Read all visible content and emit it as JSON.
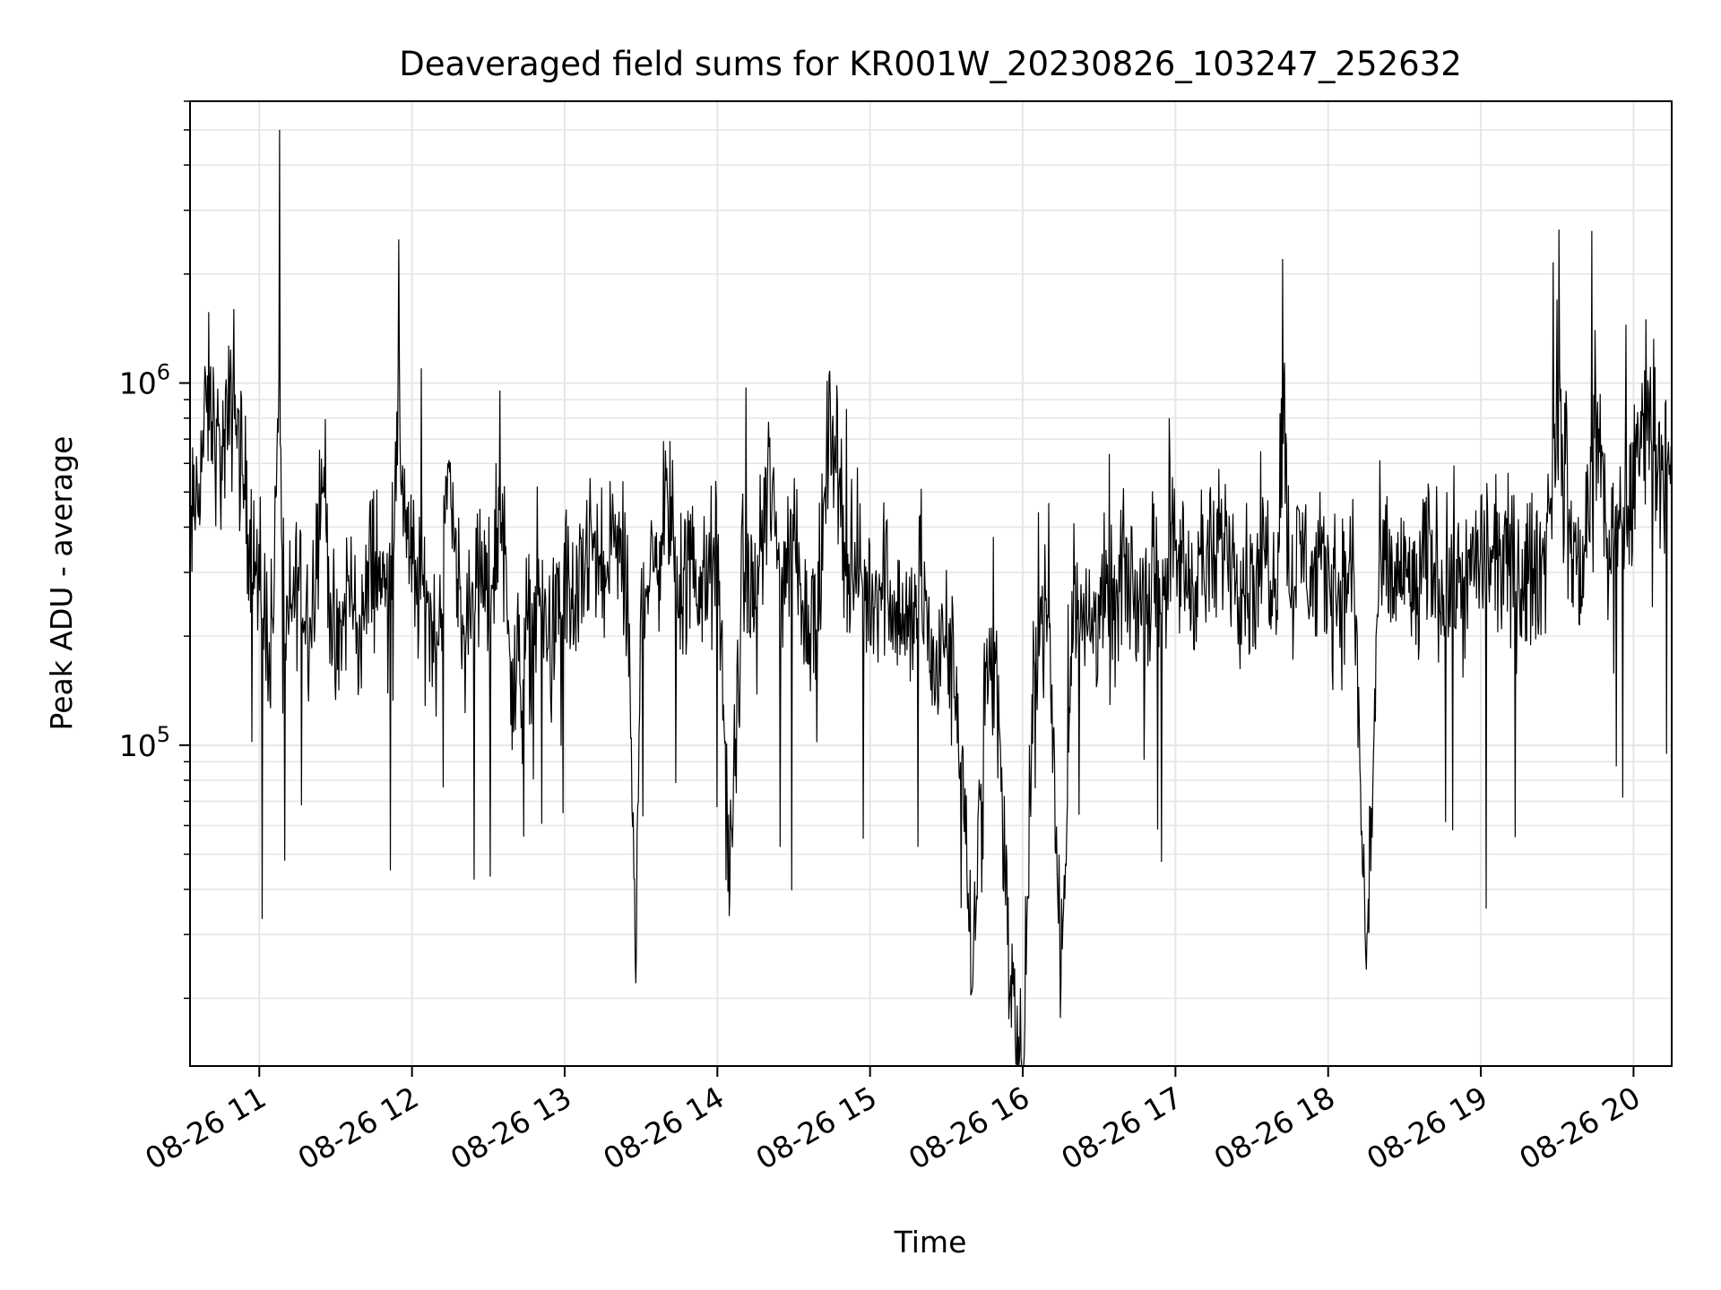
{
  "chart_data": {
    "type": "line",
    "title": "Deaveraged field sums for KR001W_20230826_103247_252632",
    "xlabel": "Time",
    "ylabel": "Peak ADU - average",
    "x_axis": {
      "kind": "time",
      "range": [
        "2023-08-26 10:32:47",
        "2023-08-26 20:15:00"
      ],
      "ticks": [
        "2023-08-26 11:00",
        "2023-08-26 12:00",
        "2023-08-26 13:00",
        "2023-08-26 14:00",
        "2023-08-26 15:00",
        "2023-08-26 16:00",
        "2023-08-26 17:00",
        "2023-08-26 18:00",
        "2023-08-26 19:00",
        "2023-08-26 20:00"
      ],
      "tick_labels": [
        "08-26 11",
        "08-26 12",
        "08-26 13",
        "08-26 14",
        "08-26 15",
        "08-26 16",
        "08-26 17",
        "08-26 18",
        "08-26 19",
        "08-26 20"
      ]
    },
    "y_axis": {
      "scale": "log",
      "ylim": [
        13000,
        6000000
      ],
      "major_ticks": [
        100000,
        1000000
      ],
      "tick_labels": [
        {
          "base": "10",
          "exp": "5"
        },
        {
          "base": "10",
          "exp": "6"
        }
      ]
    },
    "grid": true,
    "line_color": "#000000",
    "grid_color": "#e6e6e6",
    "series": [
      {
        "x": [
          "10:32:47",
          "10:40",
          "10:45",
          "10:50",
          "10:55",
          "11:00",
          "11:05",
          "11:08",
          "11:10",
          "11:15",
          "11:20",
          "11:25",
          "11:30",
          "11:35",
          "11:40",
          "11:45",
          "11:50",
          "11:55",
          "12:00",
          "12:05",
          "12:10",
          "12:15",
          "12:20",
          "12:25",
          "12:30",
          "12:35",
          "12:40",
          "12:45",
          "12:50",
          "12:55",
          "13:00",
          "13:05",
          "13:10",
          "13:15",
          "13:20",
          "13:25",
          "13:28",
          "13:30",
          "13:35",
          "13:40",
          "13:45",
          "13:50",
          "13:55",
          "14:00",
          "14:05",
          "14:10",
          "14:15",
          "14:20",
          "14:25",
          "14:30",
          "14:35",
          "14:40",
          "14:45",
          "14:50",
          "14:55",
          "15:00",
          "15:05",
          "15:10",
          "15:15",
          "15:20",
          "15:25",
          "15:30",
          "15:35",
          "15:40",
          "15:45",
          "15:50",
          "15:55",
          "16:00",
          "16:05",
          "16:10",
          "16:15",
          "16:20",
          "16:25",
          "16:30",
          "16:35",
          "16:40",
          "16:45",
          "16:50",
          "16:55",
          "17:00",
          "17:05",
          "17:10",
          "17:15",
          "17:20",
          "17:25",
          "17:30",
          "17:35",
          "17:40",
          "17:42",
          "17:45",
          "17:50",
          "17:55",
          "18:00",
          "18:05",
          "18:10",
          "18:15",
          "18:20",
          "18:25",
          "18:30",
          "18:35",
          "18:40",
          "18:45",
          "18:50",
          "18:55",
          "19:00",
          "19:05",
          "19:10",
          "19:15",
          "19:20",
          "19:25",
          "19:30",
          "19:35",
          "19:40",
          "19:45",
          "19:50",
          "19:55",
          "20:00",
          "20:05",
          "20:10",
          "20:15"
        ],
        "y": [
          350000,
          900000,
          600000,
          1600000,
          450000,
          250000,
          200000,
          5000000,
          180000,
          300000,
          220000,
          600000,
          150000,
          280000,
          200000,
          350000,
          250000,
          700000,
          300000,
          250000,
          200000,
          600000,
          180000,
          300000,
          250000,
          450000,
          140000,
          200000,
          250000,
          180000,
          300000,
          220000,
          380000,
          260000,
          400000,
          230000,
          22000,
          300000,
          280000,
          500000,
          250000,
          320000,
          260000,
          350000,
          40000,
          300000,
          250000,
          550000,
          280000,
          400000,
          220000,
          260000,
          900000,
          350000,
          300000,
          250000,
          300000,
          250000,
          200000,
          300000,
          150000,
          200000,
          120000,
          21000,
          150000,
          160000,
          21000,
          13000,
          200000,
          250000,
          22000,
          300000,
          200000,
          250000,
          220000,
          300000,
          250000,
          280000,
          300000,
          350000,
          280000,
          320000,
          300000,
          400000,
          300000,
          280000,
          350000,
          300000,
          2200000,
          280000,
          350000,
          280000,
          300000,
          260000,
          320000,
          24000,
          300000,
          280000,
          300000,
          250000,
          350000,
          270000,
          300000,
          280000,
          350000,
          300000,
          320000,
          280000,
          300000,
          320000,
          1700000,
          350000,
          300000,
          1400000,
          350000,
          400000,
          500000,
          1500000,
          650000,
          500000
        ]
      }
    ]
  }
}
